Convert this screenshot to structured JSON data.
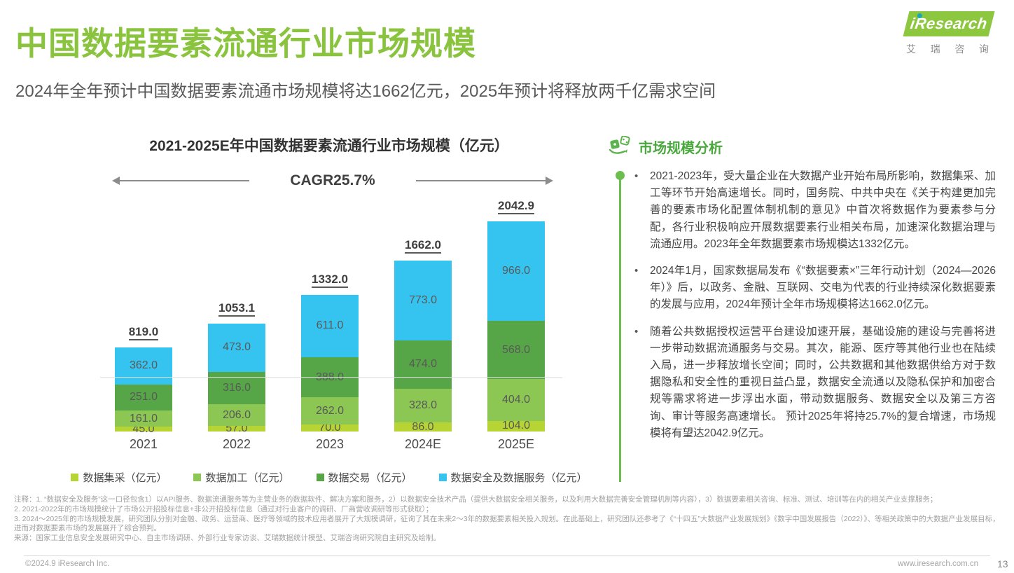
{
  "header": {
    "title": "中国数据要素流通行业市场规模",
    "subtitle": "2024年全年预计中国数据要素流通市场规模将达1662亿元，2025年预计将释放两千亿需求空间"
  },
  "logo": {
    "brand": "iResearch",
    "subtext": "艾瑞咨询"
  },
  "chart_data": {
    "type": "bar",
    "stacked": true,
    "title": "2021-2025E年中国数据要素流通行业市场规模（亿元）",
    "annotation": "CAGR25.7%",
    "categories": [
      "2021",
      "2022",
      "2023",
      "2024E",
      "2025E"
    ],
    "series": [
      {
        "name": "数据集采（亿元）",
        "color": "#b6d433",
        "values": [
          45.0,
          57.0,
          70.0,
          86.0,
          104.0
        ]
      },
      {
        "name": "数据加工（亿元）",
        "color": "#8cc653",
        "values": [
          161.0,
          206.0,
          262.0,
          328.0,
          404.0
        ]
      },
      {
        "name": "数据交易（亿元）",
        "color": "#56a647",
        "values": [
          251.0,
          316.0,
          388.0,
          474.0,
          568.0
        ]
      },
      {
        "name": "数据安全及数据服务（亿元）",
        "color": "#35c4f0",
        "values": [
          362.0,
          473.0,
          611.0,
          773.0,
          966.0
        ]
      }
    ],
    "totals": [
      "819.0",
      "1053.1",
      "1332.0",
      "1662.0",
      "2042.9"
    ],
    "ylim": [
      0,
      2100
    ],
    "grid": false,
    "legend_position": "bottom"
  },
  "analysis": {
    "heading": "市场规模分析",
    "bullets": [
      "2021-2023年，受大量企业在大数据产业开始布局所影响，数据集采、加工等环节开始高速增长。同时，国务院、中共中央在《关于构建更加完善的要素市场化配置体制机制的意见》中首次将数据作为要素参与分配，各行业积极响应开展数据要素行业相关布局，加速深化数据治理与流通应用。2023年全年数据要素市场规模达1332亿元。",
      "2024年1月，国家数据局发布《“数据要素×”三年行动计划（2024—2026年）》后，以政务、金融、互联网、交电为代表的行业持续深化数据要素的发展与应用，2024年预计全年市场规模将达1662.0亿元。",
      "随着公共数据授权运营平台建设加速开展，基础设施的建设与完善将进一步带动数据流通服务与交易。其次，能源、医疗等其他行业也在陆续入局，进一步释放增长空间；同时，公共数据和其他数据供给方对于数据隐私和安全性的重视日益凸显，数据安全流通以及隐私保护和加密合规等需求将进一步浮出水面，带动数据服务、数据安全以及第三方咨询、审计等服务高速增长。 预计2025年将持25.7%的复合增速，市场规模将有望达2042.9亿元。"
    ]
  },
  "footnotes": {
    "lines": [
      "注释：1. “数据安全及服务”这一口径包含1）以API服务、数据流通服务等为主营业务的数据软件、解决方案和服务，2）以数据安全技术产品（提供大数据安全相关服务，以及利用大数据完善安全管理机制等内容），3）数据要素相关咨询、标准、测试、培训等在内的相关产业支撑服务；",
      "2. 2021-2022年的市场规模统计了市场公开招投标信息+非公开招投标信息（通过对行业客户的调研、厂商营收调研等形式获取）；",
      "3. 2024～2025年的市场规模发展，研究团队分别对金融、政务、运营商、医疗等领域的技术应用者展开了大规模调研，征询了其在未来2～3年的数据要素相关投入规划。在此基础上，研究团队还参考了《“十四五”大数据产业发展规划》《数字中国发展报告（2022）》、等相关政策中的大数据产业发展目标，进而对数据要素市场的发展展开了综合预判。",
      "来源：国家工业信息安全发展研究中心、自主市场调研、外部行业专家访谈、艾瑞数据统计模型、艾瑞咨询研究院自主研究及绘制。"
    ]
  },
  "footer": {
    "copyright": "©2024.9 iResearch Inc.",
    "url": "www.iresearch.com.cn",
    "page": "13"
  }
}
